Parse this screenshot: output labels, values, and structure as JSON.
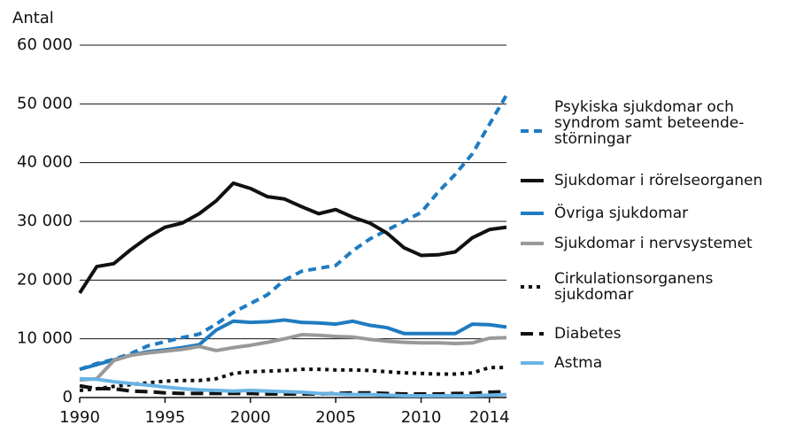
{
  "chart_data": {
    "type": "line",
    "y_label": "Antal",
    "x": [
      1990,
      1991,
      1992,
      1993,
      1994,
      1995,
      1996,
      1997,
      1998,
      1999,
      2000,
      2001,
      2002,
      2003,
      2004,
      2005,
      2006,
      2007,
      2008,
      2009,
      2010,
      2011,
      2012,
      2013,
      2014,
      2015
    ],
    "xlim": [
      1990,
      2015
    ],
    "xticks": [
      1990,
      1995,
      2000,
      2005,
      2010,
      2014
    ],
    "ylim": [
      0,
      60000
    ],
    "yticks": [
      0,
      {
        "value": 10000,
        "label": "10 000"
      },
      {
        "value": 20000,
        "label": "20 000"
      },
      {
        "value": 30000,
        "label": "30 000"
      },
      {
        "value": 40000,
        "label": "40 000"
      },
      {
        "value": 50000,
        "label": "50 000"
      },
      {
        "value": 60000,
        "label": "60 000"
      }
    ],
    "grid": true,
    "legend": "right",
    "series": [
      {
        "name": "Psykiska sjukdomar och\nsyndrom samt beteende-\nstörningar",
        "color": "#1f7bc1",
        "dash": "dashed",
        "values": [
          4800,
          5800,
          6500,
          7500,
          8800,
          9500,
          10200,
          10800,
          12500,
          14500,
          16000,
          17500,
          20000,
          21500,
          22000,
          22500,
          25000,
          27000,
          28500,
          30000,
          31500,
          35000,
          38000,
          41500,
          46500,
          51500
        ]
      },
      {
        "name": "Sjukdomar i rörelseorganen",
        "color": "#111111",
        "dash": "solid",
        "values": [
          17800,
          22300,
          22800,
          25200,
          27300,
          29000,
          29700,
          31300,
          33500,
          36500,
          35600,
          34200,
          33800,
          32500,
          31300,
          32000,
          30700,
          29700,
          28000,
          25500,
          24200,
          24300,
          24800,
          27200,
          28600,
          29000
        ]
      },
      {
        "name": "Övriga sjukdomar",
        "color": "#1f7bc1",
        "dash": "solid",
        "values": [
          4800,
          5600,
          6400,
          7200,
          7800,
          8100,
          8500,
          9000,
          11500,
          13000,
          12800,
          12900,
          13200,
          12800,
          12700,
          12500,
          13000,
          12300,
          11900,
          10900,
          10900,
          10900,
          10900,
          12500,
          12400,
          12000
        ]
      },
      {
        "name": "Sjukdomar i nervsystemet",
        "color": "#999999",
        "dash": "solid",
        "values": [
          3000,
          3200,
          6300,
          7200,
          7600,
          7900,
          8200,
          8700,
          8000,
          8500,
          8900,
          9400,
          10000,
          10700,
          10600,
          10400,
          10300,
          9900,
          9600,
          9400,
          9300,
          9300,
          9200,
          9300,
          10100,
          10200
        ]
      },
      {
        "name": "Cirkulationsorganens\nsjukdomar",
        "color": "#111111",
        "dash": "dotted",
        "values": [
          1200,
          1500,
          1900,
          2200,
          2500,
          2800,
          2900,
          2900,
          3200,
          4100,
          4400,
          4500,
          4600,
          4800,
          4800,
          4700,
          4700,
          4600,
          4400,
          4200,
          4100,
          4000,
          4000,
          4200,
          5100,
          5100
        ]
      },
      {
        "name": "Diabetes",
        "color": "#111111",
        "dash": "longdash",
        "values": [
          2000,
          1500,
          1500,
          1100,
          1000,
          800,
          700,
          700,
          700,
          700,
          700,
          600,
          600,
          600,
          600,
          700,
          800,
          800,
          700,
          600,
          600,
          600,
          700,
          700,
          900,
          1000
        ]
      },
      {
        "name": "Astma",
        "color": "#6ab4e4",
        "dash": "solid",
        "values": [
          3200,
          3100,
          2700,
          2400,
          2100,
          1800,
          1500,
          1300,
          1200,
          1100,
          1200,
          1100,
          1000,
          900,
          700,
          600,
          500,
          500,
          400,
          300,
          300,
          300,
          300,
          300,
          400,
          500
        ]
      }
    ]
  }
}
